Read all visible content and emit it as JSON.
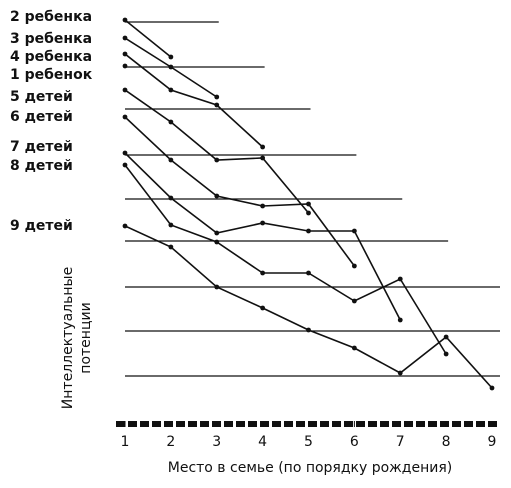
{
  "chart_data": {
    "type": "line",
    "x_label": "Место в семье (по порядку рождения)",
    "y_label": [
      "Интеллектуальные",
      "потенции"
    ],
    "x": [
      1,
      2,
      3,
      4,
      5,
      6,
      7,
      8,
      9
    ],
    "xlim": [
      1,
      9
    ],
    "xticks": [
      1,
      2,
      3,
      4,
      5,
      6,
      7,
      8,
      9
    ],
    "ylim": [
      0,
      390
    ],
    "color": "#111111",
    "hlines": {
      "values": [
        378,
        333,
        291,
        245,
        201,
        159,
        113,
        69,
        24
      ],
      "x_end": [
        3,
        4,
        5,
        6,
        7,
        8,
        9,
        9,
        9
      ]
    },
    "series": [
      {
        "name": "2 ребенка",
        "values": [
          380,
          343,
          null,
          null,
          null,
          null,
          null,
          null,
          null
        ]
      },
      {
        "name": "3 ребенка",
        "values": [
          362,
          333,
          303,
          null,
          null,
          null,
          null,
          null,
          null
        ]
      },
      {
        "name": "4 ребенка",
        "values": [
          346,
          310,
          295,
          253,
          null,
          null,
          null,
          null,
          null
        ]
      },
      {
        "name": "1 ребенок",
        "values": [
          334,
          null,
          null,
          null,
          null,
          null,
          null,
          null,
          null
        ]
      },
      {
        "name": "5 детей",
        "values": [
          310,
          278,
          240,
          242,
          187,
          null,
          null,
          null,
          null
        ]
      },
      {
        "name": "6 детей",
        "values": [
          283,
          240,
          204,
          194,
          196,
          134,
          null,
          null,
          null
        ]
      },
      {
        "name": "7 детей",
        "values": [
          247,
          202,
          167,
          177,
          169,
          169,
          80,
          null,
          null
        ]
      },
      {
        "name": "8 детей",
        "values": [
          235,
          175,
          158,
          127,
          127,
          99,
          121,
          46,
          null
        ]
      },
      {
        "name": "9 детей",
        "values": [
          174,
          153,
          113,
          92,
          70,
          52,
          27,
          63,
          12
        ]
      }
    ]
  }
}
